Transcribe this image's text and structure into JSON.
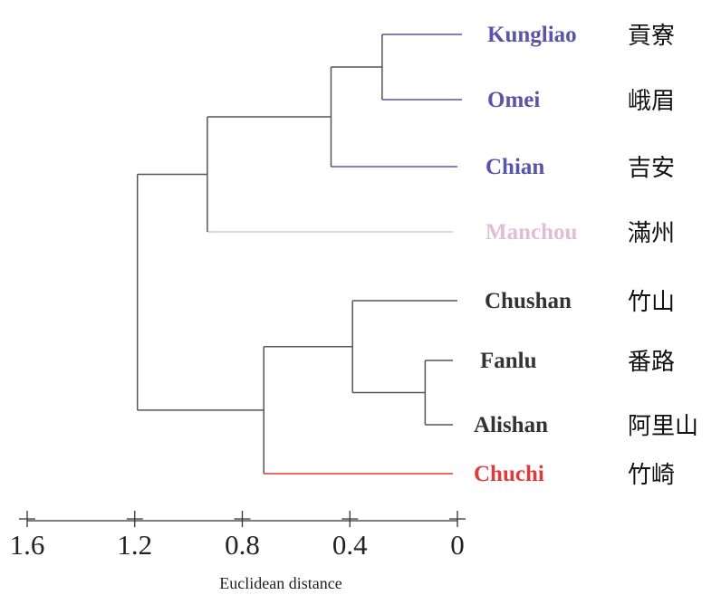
{
  "figure": {
    "leaves": [
      {
        "id": "kungliao",
        "name": "Kungliao",
        "chinese": "貢寮",
        "color": "#5b55a8"
      },
      {
        "id": "omei",
        "name": "Omei",
        "chinese": "峨眉",
        "color": "#5b55a8"
      },
      {
        "id": "chian",
        "name": "Chian",
        "chinese": "吉安",
        "color": "#5b55a8"
      },
      {
        "id": "manchou",
        "name": "Manchou",
        "chinese": "滿州",
        "color": "#e1bdd6"
      },
      {
        "id": "chushan",
        "name": "Chushan",
        "chinese": "竹山",
        "color": "#333333"
      },
      {
        "id": "fanlu",
        "name": "Fanlu",
        "chinese": "番路",
        "color": "#333333"
      },
      {
        "id": "alishan",
        "name": "Alishan",
        "chinese": "阿里山",
        "color": "#333333"
      },
      {
        "id": "chuchi",
        "name": "Chuchi",
        "chinese": "竹崎",
        "color": "#e03a3a"
      }
    ],
    "axis": {
      "title": "Euclidean distance",
      "ticks": [
        {
          "value": 1.6,
          "label": "1.6"
        },
        {
          "value": 1.2,
          "label": "1.2"
        },
        {
          "value": 0.8,
          "label": "0.8"
        },
        {
          "value": 0.4,
          "label": "0.4"
        },
        {
          "value": 0.0,
          "label": "0"
        }
      ]
    },
    "merges": [
      {
        "id": "kungliao_omei",
        "children": [
          "kungliao",
          "omei"
        ],
        "distance": 0.28
      },
      {
        "id": "blue_group",
        "children": [
          "kungliao_omei",
          "chian"
        ],
        "distance": 0.47
      },
      {
        "id": "north_group",
        "children": [
          "blue_group",
          "manchou"
        ],
        "distance": 0.93
      },
      {
        "id": "fanlu_alishan",
        "children": [
          "fanlu",
          "alishan"
        ],
        "distance": 0.12
      },
      {
        "id": "chushan_group",
        "children": [
          "chushan",
          "fanlu_alishan"
        ],
        "distance": 0.39
      },
      {
        "id": "south_group",
        "children": [
          "chushan_group",
          "chuchi"
        ],
        "distance": 0.72
      },
      {
        "id": "root",
        "children": [
          "north_group",
          "south_group"
        ],
        "distance": 1.19
      }
    ],
    "colors": {
      "blue": "#5b55a8",
      "pink": "#e1bdd6",
      "red": "#e03a3a",
      "dark": "#333333",
      "branch": "#555555",
      "axis": "#333333"
    }
  }
}
